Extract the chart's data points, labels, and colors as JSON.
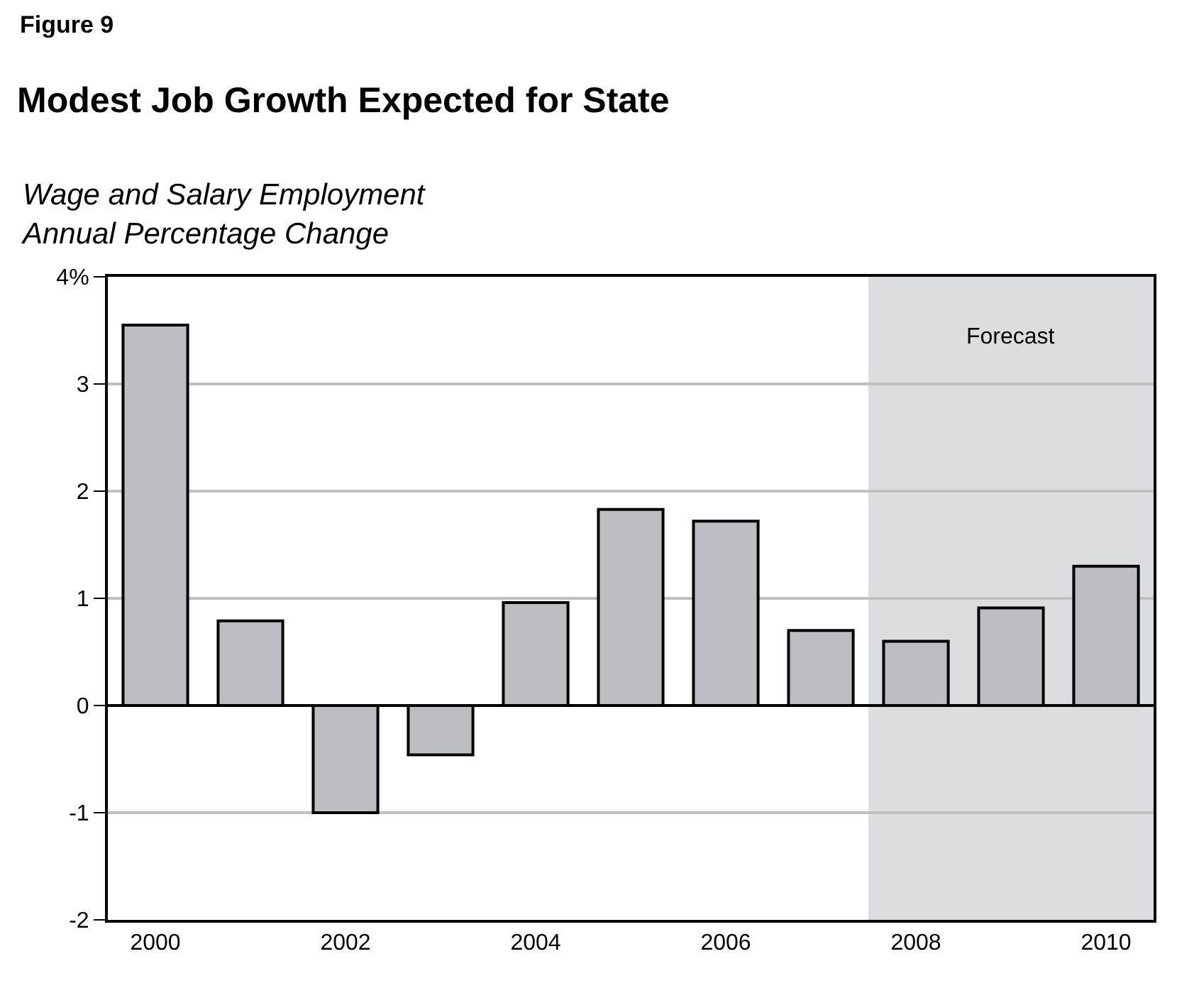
{
  "chart_data": {
    "type": "bar",
    "title": "Modest Job Growth Expected for State",
    "subtitle": "Wage and Salary Employment\nAnnual Percentage Change",
    "annotations": [
      "Figure 9"
    ],
    "x": [
      2000,
      2001,
      2002,
      2003,
      2004,
      2005,
      2006,
      2007,
      2008,
      2009,
      2010
    ],
    "values": [
      3.55,
      0.79,
      -1.0,
      -0.46,
      0.96,
      1.83,
      1.72,
      0.7,
      0.6,
      0.91,
      1.3
    ],
    "color": "#bdbec2",
    "xlim": [
      1999.5,
      2010.5
    ],
    "xticks": [
      2000,
      2002,
      2004,
      2006,
      2008,
      2010
    ],
    "ylim": [
      -2,
      4
    ],
    "yticks": [
      -2,
      -1,
      0,
      1,
      2,
      3,
      {
        "value": 4,
        "label": "4%"
      }
    ],
    "grid": "y",
    "bands": [
      {
        "axis": "x",
        "from": 2007.5,
        "to": 2010.5,
        "label": "Forecast",
        "color": "#dcdddf"
      }
    ]
  }
}
